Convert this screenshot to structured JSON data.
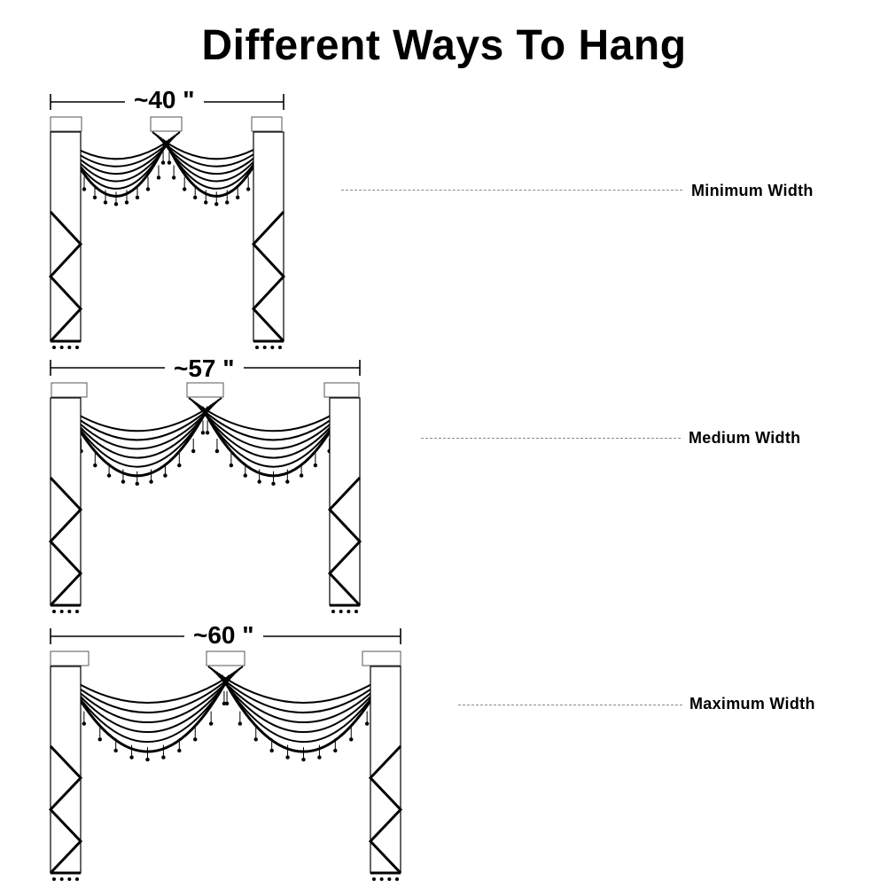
{
  "title": "Different Ways To Hang",
  "arrangements": [
    {
      "dimension": "~40 \"",
      "label": "Minimum Width"
    },
    {
      "dimension": "~57 \"",
      "label": "Medium Width"
    },
    {
      "dimension": "~60 \"",
      "label": "Maximum Width"
    }
  ],
  "colors": {
    "ink": "#000000",
    "leader": "#8a8a8a",
    "background": "#ffffff"
  }
}
